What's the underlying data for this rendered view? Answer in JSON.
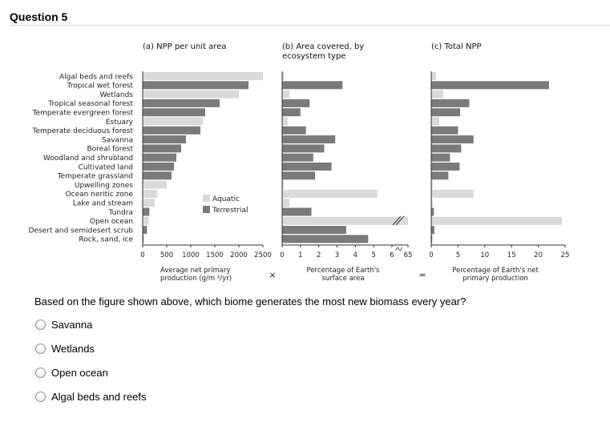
{
  "question": {
    "title": "Question 5",
    "text": "Based on the figure shown above, which biome generates the most new biomass every year?",
    "options": [
      "Savanna",
      "Wetlands",
      "Open ocean",
      "Algal beds and reefs"
    ]
  },
  "colors": {
    "aquatic": "#d9d9d9",
    "terrestrial": "#7a7a7a"
  },
  "chart_data": {
    "ecosystems": [
      "Algal beds and reefs",
      "Tropical wet forest",
      "Wetlands",
      "Tropical seasonal forest",
      "Temperate evergreen forest",
      "Estuary",
      "Temperate deciduous forest",
      "Savanna",
      "Boreal forest",
      "Woodland and shrubland",
      "Cultivated land",
      "Temperate grassland",
      "Upwelling zones",
      "Ocean neritic zone",
      "Lake and stream",
      "Tundra",
      "Open ocean",
      "Desert and semidesert scrub",
      "Rock, sand, ice"
    ],
    "ecosystem_type": [
      "aquatic",
      "terrestrial",
      "aquatic",
      "terrestrial",
      "terrestrial",
      "aquatic",
      "terrestrial",
      "terrestrial",
      "terrestrial",
      "terrestrial",
      "terrestrial",
      "terrestrial",
      "aquatic",
      "aquatic",
      "aquatic",
      "terrestrial",
      "aquatic",
      "terrestrial",
      "terrestrial"
    ],
    "legend": [
      "Aquatic",
      "Terrestrial"
    ],
    "panels": [
      {
        "type": "bar",
        "title": "(a) NPP per unit area",
        "xlabel_lines": [
          "Average net primary",
          "production (g/m  ²/yr)"
        ],
        "xlim": [
          0,
          2500
        ],
        "ticks": [
          "0",
          "500",
          "1000",
          "1500",
          "2000",
          "2500"
        ],
        "values": [
          2500,
          2200,
          2000,
          1600,
          1300,
          1250,
          1200,
          900,
          800,
          700,
          650,
          600,
          500,
          300,
          250,
          140,
          125,
          90,
          3
        ]
      },
      {
        "type": "bar",
        "title_lines": [
          "(b) Area covered, by",
          "ecosystem type"
        ],
        "xlabel_lines": [
          "Percentage of Earth's",
          "surface area"
        ],
        "xlim": [
          0,
          7
        ],
        "ticks": [
          "0",
          "1",
          "2",
          "3",
          "4",
          "5",
          "6",
          "65"
        ],
        "values": [
          0.1,
          3.3,
          0.4,
          1.5,
          1.0,
          0.3,
          1.3,
          2.9,
          2.3,
          1.7,
          2.7,
          1.8,
          0.1,
          5.2,
          0.4,
          1.6,
          65,
          3.5,
          4.7
        ]
      },
      {
        "type": "bar",
        "title": "(c) Total NPP",
        "xlabel_lines": [
          "Percentage of Earth's net",
          "primary production"
        ],
        "xlim": [
          0,
          25
        ],
        "ticks": [
          "0",
          "5",
          "10",
          "15",
          "20",
          "25"
        ],
        "values": [
          0.9,
          22,
          2.3,
          7.1,
          5.4,
          1.5,
          5.0,
          7.9,
          5.6,
          3.5,
          5.3,
          3.2,
          0.3,
          7.9,
          0.3,
          0.5,
          24.4,
          0.6,
          0.04
        ]
      }
    ],
    "operators": [
      "×",
      "="
    ]
  }
}
